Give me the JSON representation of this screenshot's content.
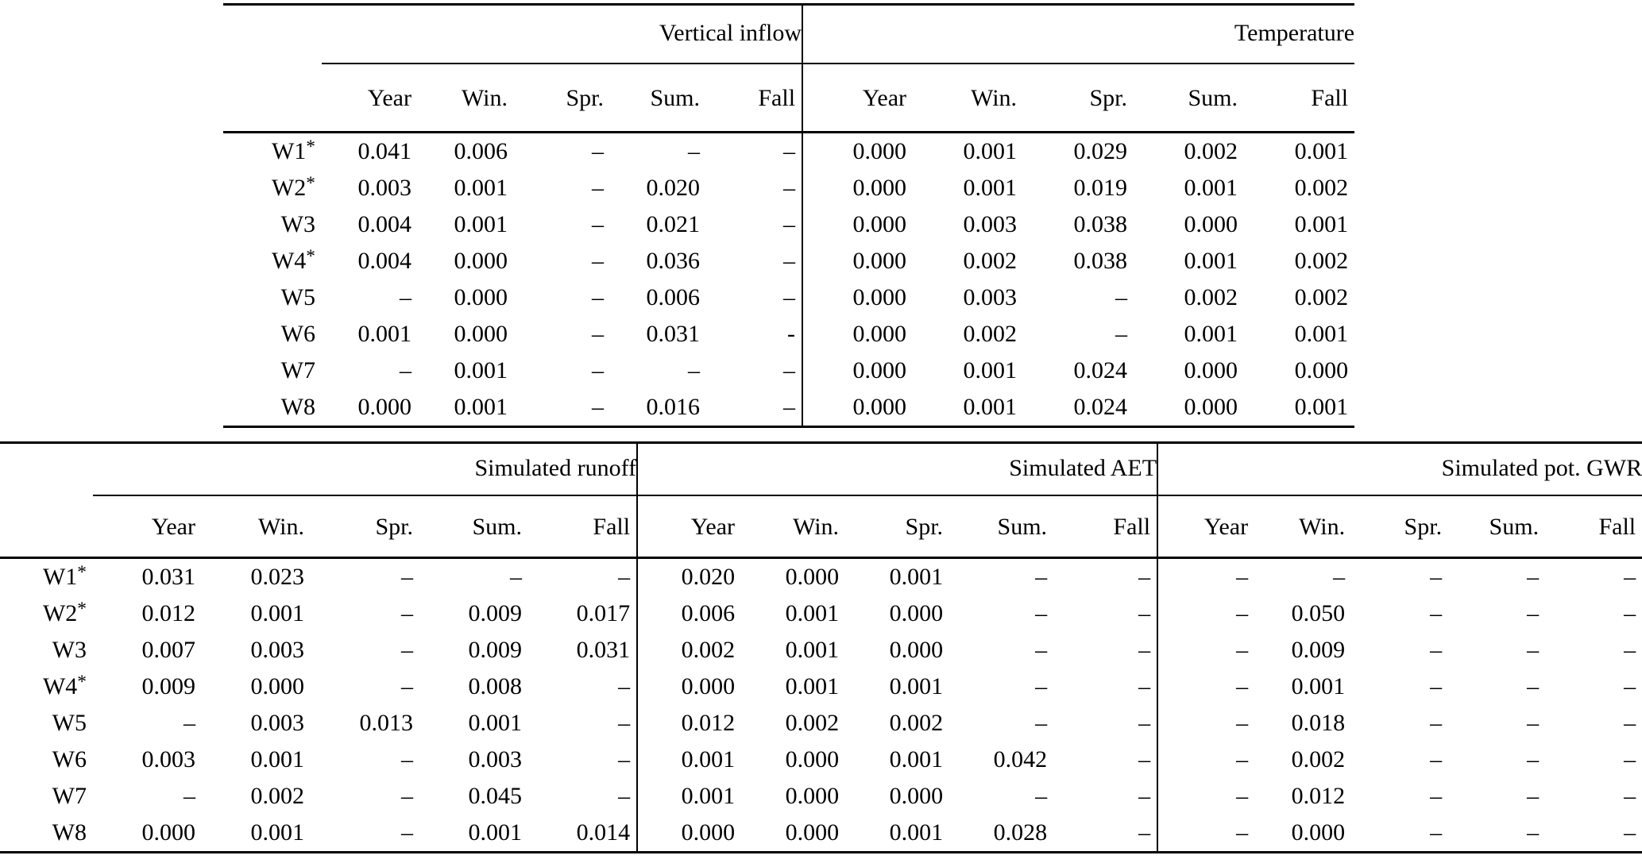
{
  "seasons": [
    "Year",
    "Win.",
    "Spr.",
    "Sum.",
    "Fall"
  ],
  "table1": {
    "groups": [
      "Vertical inflow",
      "Temperature"
    ],
    "rows": [
      {
        "label": "W1",
        "star": "*",
        "cells": [
          [
            "0.041",
            "0.006",
            "–",
            "–",
            "–"
          ],
          [
            "0.000",
            "0.001",
            "0.029",
            "0.002",
            "0.001"
          ]
        ]
      },
      {
        "label": "W2",
        "star": "*",
        "cells": [
          [
            "0.003",
            "0.001",
            "–",
            "0.020",
            "–"
          ],
          [
            "0.000",
            "0.001",
            "0.019",
            "0.001",
            "0.002"
          ]
        ]
      },
      {
        "label": "W3",
        "star": "",
        "cells": [
          [
            "0.004",
            "0.001",
            "–",
            "0.021",
            "–"
          ],
          [
            "0.000",
            "0.003",
            "0.038",
            "0.000",
            "0.001"
          ]
        ]
      },
      {
        "label": "W4",
        "star": "*",
        "cells": [
          [
            "0.004",
            "0.000",
            "–",
            "0.036",
            "–"
          ],
          [
            "0.000",
            "0.002",
            "0.038",
            "0.001",
            "0.002"
          ]
        ]
      },
      {
        "label": "W5",
        "star": "",
        "cells": [
          [
            "–",
            "0.000",
            "–",
            "0.006",
            "–"
          ],
          [
            "0.000",
            "0.003",
            "–",
            "0.002",
            "0.002"
          ]
        ]
      },
      {
        "label": "W6",
        "star": "",
        "cells": [
          [
            "0.001",
            "0.000",
            "–",
            "0.031",
            "-"
          ],
          [
            "0.000",
            "0.002",
            "–",
            "0.001",
            "0.001"
          ]
        ]
      },
      {
        "label": "W7",
        "star": "",
        "cells": [
          [
            "–",
            "0.001",
            "–",
            "–",
            "–"
          ],
          [
            "0.000",
            "0.001",
            "0.024",
            "0.000",
            "0.000"
          ]
        ]
      },
      {
        "label": "W8",
        "star": "",
        "cells": [
          [
            "0.000",
            "0.001",
            "–",
            "0.016",
            "–"
          ],
          [
            "0.000",
            "0.001",
            "0.024",
            "0.000",
            "0.001"
          ]
        ]
      }
    ]
  },
  "table2": {
    "groups": [
      "Simulated runoff",
      "Simulated AET",
      "Simulated pot. GWR"
    ],
    "rows": [
      {
        "label": "W1",
        "star": "*",
        "cells": [
          [
            "0.031",
            "0.023",
            "–",
            "–",
            "–"
          ],
          [
            "0.020",
            "0.000",
            "0.001",
            "–",
            "–"
          ],
          [
            "–",
            "–",
            "–",
            "–",
            "–"
          ]
        ]
      },
      {
        "label": "W2",
        "star": "*",
        "cells": [
          [
            "0.012",
            "0.001",
            "–",
            "0.009",
            "0.017"
          ],
          [
            "0.006",
            "0.001",
            "0.000",
            "–",
            "–"
          ],
          [
            "–",
            "0.050",
            "–",
            "–",
            "–"
          ]
        ]
      },
      {
        "label": "W3",
        "star": "",
        "cells": [
          [
            "0.007",
            "0.003",
            "–",
            "0.009",
            "0.031"
          ],
          [
            "0.002",
            "0.001",
            "0.000",
            "–",
            "–"
          ],
          [
            "–",
            "0.009",
            "–",
            "–",
            "–"
          ]
        ]
      },
      {
        "label": "W4",
        "star": "*",
        "cells": [
          [
            "0.009",
            "0.000",
            "–",
            "0.008",
            "–"
          ],
          [
            "0.000",
            "0.001",
            "0.001",
            "–",
            "–"
          ],
          [
            "–",
            "0.001",
            "–",
            "–",
            "–"
          ]
        ]
      },
      {
        "label": "W5",
        "star": "",
        "cells": [
          [
            "–",
            "0.003",
            "0.013",
            "0.001",
            "–"
          ],
          [
            "0.012",
            "0.002",
            "0.002",
            "–",
            "–"
          ],
          [
            "–",
            "0.018",
            "–",
            "–",
            "–"
          ]
        ]
      },
      {
        "label": "W6",
        "star": "",
        "cells": [
          [
            "0.003",
            "0.001",
            "–",
            "0.003",
            "–"
          ],
          [
            "0.001",
            "0.000",
            "0.001",
            "0.042",
            "–"
          ],
          [
            "–",
            "0.002",
            "–",
            "–",
            "–"
          ]
        ]
      },
      {
        "label": "W7",
        "star": "",
        "cells": [
          [
            "–",
            "0.002",
            "–",
            "0.045",
            "–"
          ],
          [
            "0.001",
            "0.000",
            "0.000",
            "–",
            "–"
          ],
          [
            "–",
            "0.012",
            "–",
            "–",
            "–"
          ]
        ]
      },
      {
        "label": "W8",
        "star": "",
        "cells": [
          [
            "0.000",
            "0.001",
            "–",
            "0.001",
            "0.014"
          ],
          [
            "0.000",
            "0.000",
            "0.001",
            "0.028",
            "–"
          ],
          [
            "–",
            "0.000",
            "–",
            "–",
            "–"
          ]
        ]
      }
    ]
  }
}
